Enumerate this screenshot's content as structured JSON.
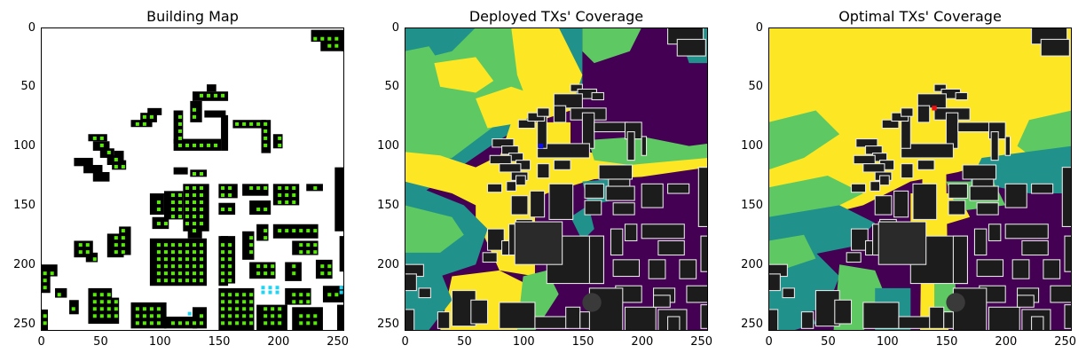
{
  "chart_data": [
    {
      "type": "heatmap",
      "title": "Building Map",
      "xlim": [
        0,
        255
      ],
      "ylim": [
        255,
        0
      ],
      "xticks": [
        "0",
        "50",
        "100",
        "150",
        "200",
        "250"
      ],
      "yticks": [
        "0",
        "50",
        "100",
        "150",
        "200",
        "250"
      ],
      "colors": {
        "background": "#ffffff",
        "building": "#000000",
        "candidate": "#55ee00",
        "highlight": "#22d4f0"
      }
    },
    {
      "type": "heatmap",
      "title": "Deployed TXs' Coverage",
      "xlim": [
        0,
        255
      ],
      "ylim": [
        255,
        0
      ],
      "xticks": [
        "0",
        "50",
        "100",
        "150",
        "200",
        "250"
      ],
      "yticks": [
        "0",
        "50",
        "100",
        "150",
        "200",
        "250"
      ],
      "tx_location": [
        115,
        100
      ],
      "colors": {
        "none": "#440154",
        "low": "#21918c",
        "mid": "#5ec962",
        "high": "#fde725",
        "tx": "#1010ee"
      }
    },
    {
      "type": "heatmap",
      "title": "Optimal TXs' Coverage",
      "xlim": [
        0,
        255
      ],
      "ylim": [
        255,
        0
      ],
      "xticks": [
        "0",
        "50",
        "100",
        "150",
        "200",
        "250"
      ],
      "yticks": [
        "0",
        "50",
        "100",
        "150",
        "200",
        "250"
      ],
      "tx_location": [
        140,
        68
      ],
      "colors": {
        "none": "#440154",
        "low": "#21918c",
        "mid": "#5ec962",
        "high": "#fde725",
        "tx": "#ee1010"
      }
    }
  ]
}
